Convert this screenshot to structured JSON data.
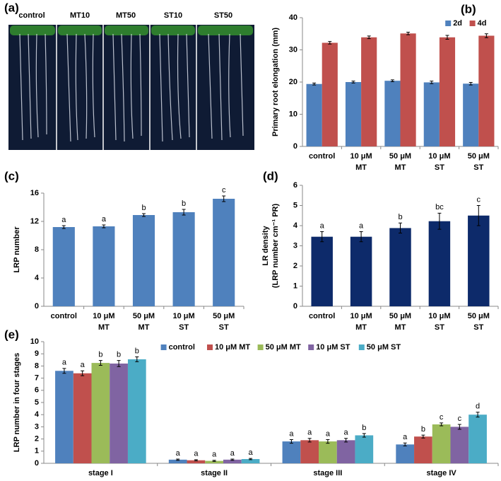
{
  "photo": {
    "panel_label": "(a)",
    "labels": [
      "control",
      "MT10",
      "MT50",
      "ST10",
      "ST50"
    ]
  },
  "chart_data": [
    {
      "type": "bar",
      "panel_label": "(b)",
      "ylabel": [
        "Primary root elongation (mm)"
      ],
      "categories": [
        [
          "control"
        ],
        [
          "10 μM",
          "MT"
        ],
        [
          "50 μM",
          "MT"
        ],
        [
          "10 μM",
          "ST"
        ],
        [
          "50 μM",
          "ST"
        ]
      ],
      "series": [
        {
          "name": "2d",
          "color": "#4f81bd",
          "values": [
            19.4,
            20.0,
            20.4,
            19.9,
            19.5
          ],
          "errors": [
            0.3,
            0.3,
            0.3,
            0.4,
            0.4
          ]
        },
        {
          "name": "4d",
          "color": "#c0504d",
          "values": [
            32.2,
            33.9,
            35.1,
            33.9,
            34.4
          ],
          "errors": [
            0.4,
            0.4,
            0.4,
            0.6,
            0.6
          ]
        }
      ],
      "ylim": [
        0,
        40
      ],
      "yticks": [
        0,
        10,
        20,
        30,
        40
      ],
      "legend": "upper right"
    },
    {
      "type": "bar",
      "panel_label": "(c)",
      "ylabel": [
        "LRP number"
      ],
      "categories": [
        [
          "control"
        ],
        [
          "10 μM",
          "MT"
        ],
        [
          "50 μM",
          "MT"
        ],
        [
          "10 μM",
          "ST"
        ],
        [
          "50 μM",
          "ST"
        ]
      ],
      "series": [
        {
          "color": "#4f81bd",
          "values": [
            11.2,
            11.3,
            12.9,
            13.3,
            15.2
          ],
          "errors": [
            0.2,
            0.2,
            0.2,
            0.4,
            0.4
          ],
          "letters": [
            "a",
            "a",
            "b",
            "b",
            "c"
          ]
        }
      ],
      "ylim": [
        0,
        16
      ],
      "yticks": [
        0,
        4,
        8,
        12,
        16
      ]
    },
    {
      "type": "bar",
      "panel_label": "(d)",
      "ylabel": [
        "LR density",
        "(LRP number cm⁻¹ PR)"
      ],
      "categories": [
        [
          "control"
        ],
        [
          "10 μM",
          "MT"
        ],
        [
          "50 μM",
          "MT"
        ],
        [
          "10 μM",
          "ST"
        ],
        [
          "50 μM",
          "ST"
        ]
      ],
      "series": [
        {
          "color": "#0d2a6a",
          "values": [
            3.45,
            3.45,
            3.88,
            4.22,
            4.5
          ],
          "errors": [
            0.25,
            0.25,
            0.25,
            0.4,
            0.5
          ],
          "letters": [
            "a",
            "a",
            "b",
            "bc",
            "c"
          ]
        }
      ],
      "ylim": [
        0,
        6
      ],
      "yticks": [
        0,
        1,
        2,
        3,
        4,
        5,
        6
      ]
    },
    {
      "type": "bar",
      "panel_label": "(e)",
      "ylabel": [
        "LRP number in four stages"
      ],
      "categories": [
        [
          "stage I"
        ],
        [
          "stage II"
        ],
        [
          "stage III"
        ],
        [
          "stage IV"
        ]
      ],
      "series": [
        {
          "name": "control",
          "color": "#4f81bd",
          "values": [
            7.6,
            0.3,
            1.8,
            1.55
          ],
          "errors": [
            0.2,
            0.05,
            0.15,
            0.12
          ],
          "letters": [
            "a",
            "a",
            "a",
            "a"
          ]
        },
        {
          "name": "10 μM MT",
          "color": "#c0504d",
          "values": [
            7.4,
            0.25,
            1.9,
            2.2
          ],
          "errors": [
            0.2,
            0.05,
            0.15,
            0.12
          ],
          "letters": [
            "a",
            "a",
            "a",
            "b"
          ]
        },
        {
          "name": "50 μM MT",
          "color": "#9bbb59",
          "values": [
            8.25,
            0.2,
            1.8,
            3.2
          ],
          "errors": [
            0.2,
            0.05,
            0.15,
            0.12
          ],
          "letters": [
            "b",
            "a",
            "a",
            "c"
          ]
        },
        {
          "name": "10 μM ST",
          "color": "#8064a2",
          "values": [
            8.2,
            0.3,
            1.9,
            3.0
          ],
          "errors": [
            0.25,
            0.05,
            0.15,
            0.2
          ],
          "letters": [
            "b",
            "a",
            "a",
            "c"
          ]
        },
        {
          "name": "50 μM ST",
          "color": "#4bacc6",
          "values": [
            8.55,
            0.35,
            2.3,
            4.0
          ],
          "errors": [
            0.2,
            0.05,
            0.15,
            0.2
          ],
          "letters": [
            "b",
            "a",
            "b",
            "d"
          ]
        }
      ],
      "ylim": [
        0,
        10
      ],
      "yticks": [
        0,
        1,
        2,
        3,
        4,
        5,
        6,
        7,
        8,
        9,
        10
      ],
      "legend": "upper center"
    }
  ]
}
